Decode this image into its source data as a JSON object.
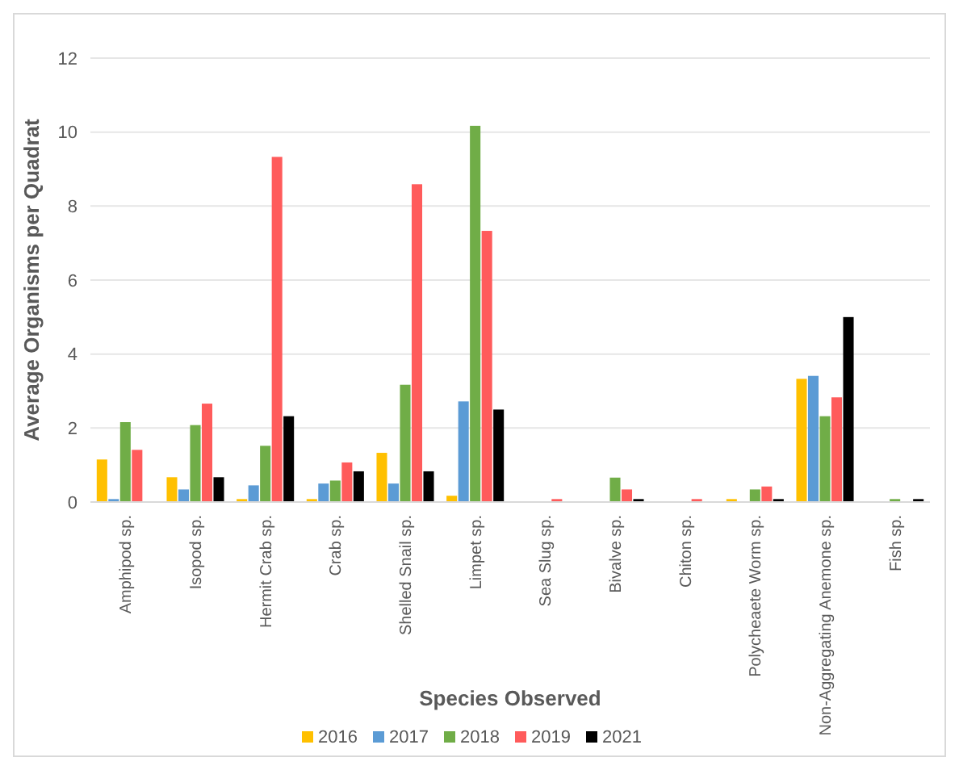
{
  "chart_data": {
    "type": "bar",
    "xlabel": "Species Observed",
    "ylabel": "Average Organisms per Quadrat",
    "categories": [
      "Amphipod sp.",
      "Isopod sp.",
      "Hermit Crab sp.",
      "Crab sp.",
      "Shelled Snail sp.",
      "Limpet sp.",
      "Sea Slug sp.",
      "Bivalve sp.",
      "Chiton sp.",
      "Polycheaete Worm sp.",
      "Non-Aggregating Anemone sp.",
      "Fish sp."
    ],
    "series": [
      {
        "name": "2016",
        "color": "#ffc000",
        "values": [
          1.15,
          0.67,
          0.08,
          0.08,
          1.33,
          0.17,
          null,
          null,
          null,
          0.08,
          3.33,
          null
        ]
      },
      {
        "name": "2017",
        "color": "#5b9bd5",
        "values": [
          0.08,
          0.34,
          0.45,
          0.5,
          0.5,
          2.72,
          null,
          null,
          null,
          null,
          3.41,
          null
        ]
      },
      {
        "name": "2018",
        "color": "#70ad47",
        "values": [
          2.16,
          2.08,
          1.52,
          0.58,
          3.17,
          10.17,
          null,
          0.66,
          null,
          0.34,
          2.32,
          0.08
        ]
      },
      {
        "name": "2019",
        "color": "#ff5b5b",
        "values": [
          1.41,
          2.66,
          9.33,
          1.07,
          8.59,
          7.33,
          0.08,
          0.34,
          0.08,
          0.42,
          2.83,
          null
        ]
      },
      {
        "name": "2021",
        "color": "#000000",
        "values": [
          null,
          0.67,
          2.32,
          0.83,
          0.83,
          2.5,
          null,
          0.08,
          null,
          0.08,
          5.0,
          0.08
        ]
      }
    ],
    "ylim": [
      0,
      12
    ],
    "yticks": [
      0,
      2,
      4,
      6,
      8,
      10,
      12
    ],
    "grid": "y",
    "legend": "bottom"
  }
}
